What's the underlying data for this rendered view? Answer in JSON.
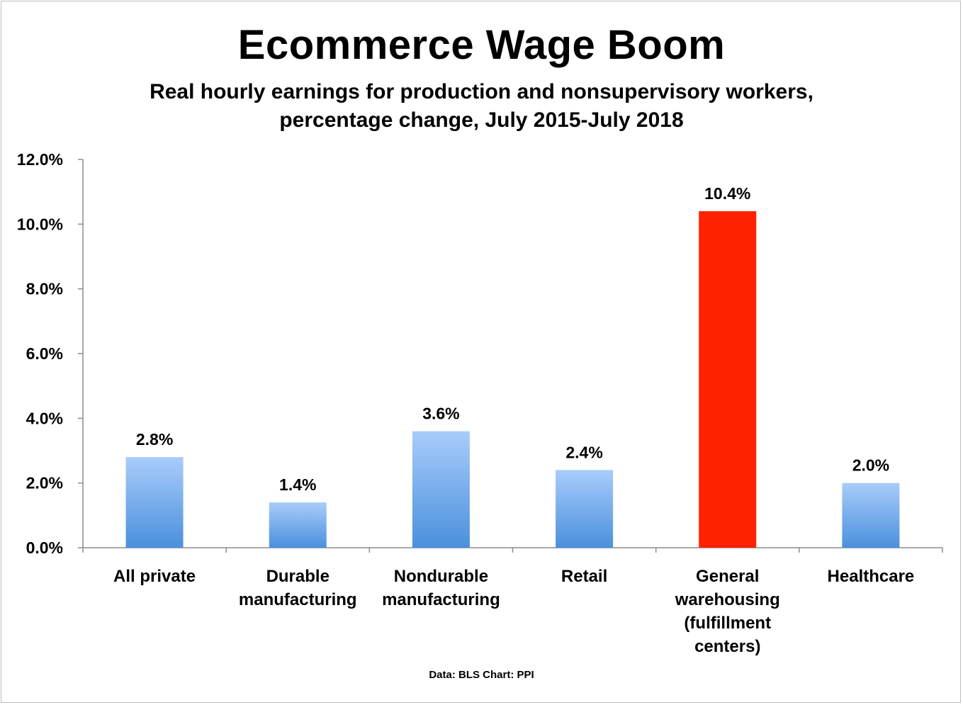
{
  "chart_data": {
    "type": "bar",
    "title": "Ecommerce Wage Boom",
    "subtitle_lines": [
      "Real hourly earnings for production and nonsupervisory workers,",
      "percentage change, July 2015-July 2018"
    ],
    "categories": [
      [
        "All private"
      ],
      [
        "Durable",
        "manufacturing"
      ],
      [
        "Nondurable",
        "manufacturing"
      ],
      [
        "Retail"
      ],
      [
        "General",
        "warehousing",
        "(fulfillment",
        "centers)"
      ],
      [
        "Healthcare"
      ]
    ],
    "values": [
      2.8,
      1.4,
      3.6,
      2.4,
      10.4,
      2.0
    ],
    "value_labels": [
      "2.8%",
      "1.4%",
      "3.6%",
      "2.4%",
      "10.4%",
      "2.0%"
    ],
    "highlight_index": 4,
    "ylim": [
      0,
      12
    ],
    "yticks": [
      0,
      2,
      4,
      6,
      8,
      10,
      12
    ],
    "ytick_labels": [
      "0.0%",
      "2.0%",
      "4.0%",
      "6.0%",
      "8.0%",
      "10.0%",
      "12.0%"
    ],
    "xlabel": "",
    "ylabel": "",
    "grid": false,
    "legend": "none",
    "colors": {
      "bar_top": "#a9ccfb",
      "bar_bottom": "#4a90dc",
      "highlight": "#ff2200",
      "axis": "#8c8c8c"
    },
    "source_note": "Data: BLS  Chart: PPI"
  }
}
